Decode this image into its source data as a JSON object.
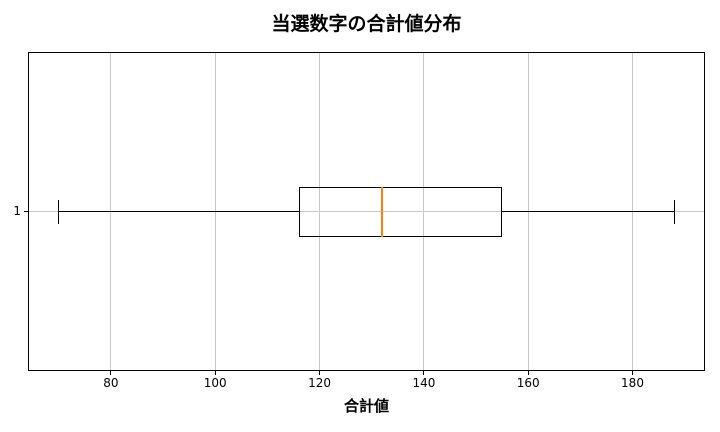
{
  "chart_data": {
    "type": "boxplot",
    "orientation": "horizontal",
    "title": "当選数字の合計値分布",
    "xlabel": "合計値",
    "ylabel": "",
    "xticks": [
      80,
      100,
      120,
      140,
      160,
      180
    ],
    "xlim": [
      64.1,
      193.9
    ],
    "grid": true,
    "legend_position": "none",
    "series": [
      {
        "ytick_label": "1",
        "whisker_low": 70,
        "q1": 116,
        "median": 132,
        "q3": 155,
        "whisker_high": 188,
        "outliers": []
      }
    ],
    "colors": {
      "spine": "#000000",
      "box_line": "#000000",
      "whisker": "#000000",
      "median": "#ff7f0e",
      "grid": "#c8c8c8",
      "text": "#000000"
    }
  }
}
